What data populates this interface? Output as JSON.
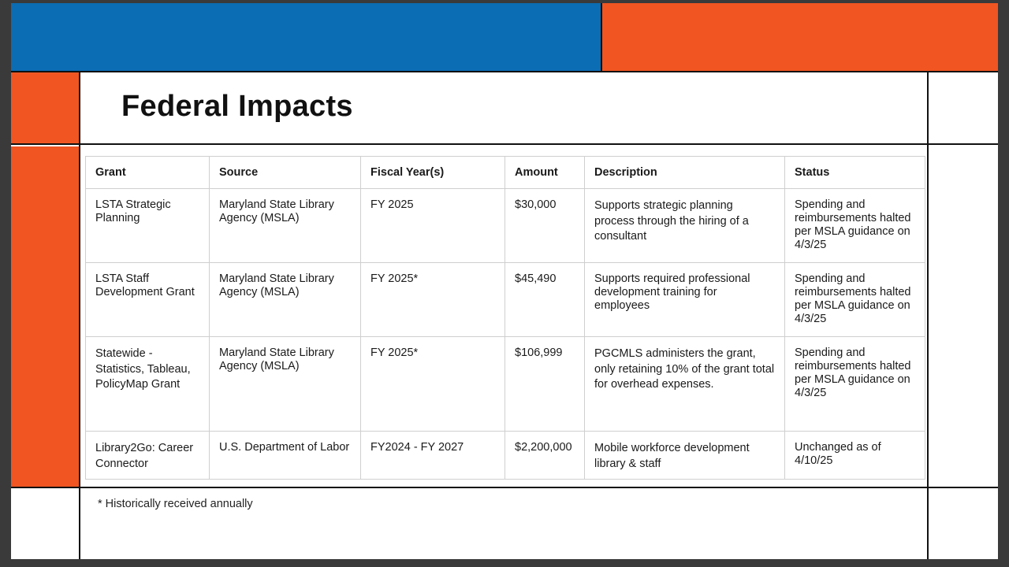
{
  "slide": {
    "title": "Federal Impacts",
    "footnote": "* Historically received annually",
    "colors": {
      "blue": "#0b6db3",
      "orange": "#f05522"
    }
  },
  "table": {
    "headers": [
      "Grant",
      "Source",
      "Fiscal Year(s)",
      "Amount",
      "Description",
      "Status"
    ],
    "rows": [
      {
        "grant": "LSTA Strategic Planning",
        "source": "Maryland State Library Agency (MSLA)",
        "fiscal_years": "FY 2025",
        "amount": "$30,000",
        "description": "Supports strategic planning process through the hiring of a consultant",
        "status": "Spending and reimbursements halted per MSLA guidance on 4/3/25"
      },
      {
        "grant": "LSTA Staff Development Grant",
        "source": "Maryland State Library Agency (MSLA)",
        "fiscal_years": "FY 2025*",
        "amount": "$45,490",
        "description": "Supports required professional development training for employees",
        "status": "Spending and reimbursements halted per MSLA guidance on 4/3/25"
      },
      {
        "grant": "Statewide - Statistics, Tableau, PolicyMap Grant",
        "source": "Maryland State Library Agency (MSLA)",
        "fiscal_years": "FY 2025*",
        "amount": "$106,999",
        "description": "PGCMLS administers the grant, only retaining 10% of the grant total for overhead expenses.",
        "status": "Spending and reimbursements halted per MSLA guidance on 4/3/25"
      },
      {
        "grant": "Library2Go: Career Connector",
        "source": "U.S. Department of Labor",
        "fiscal_years": "FY2024 - FY 2027",
        "amount": "$2,200,000",
        "description": "Mobile workforce development library & staff",
        "status": "Unchanged as of 4/10/25"
      }
    ]
  }
}
